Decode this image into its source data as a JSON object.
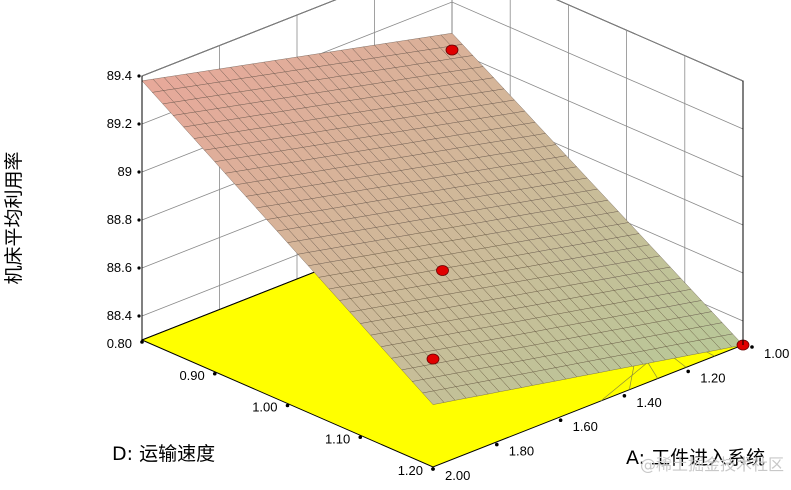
{
  "chart_data": {
    "type": "surface",
    "title": "",
    "zlabel": "机床平均利用率",
    "xlabel": "A: 工件进入系统",
    "ylabel": "D: 运输速度",
    "z_ticks": [
      "88.4",
      "88.6",
      "88.8",
      "89",
      "89.2",
      "89.4"
    ],
    "a_ticks": [
      "1.00",
      "1.20",
      "1.40",
      "1.60",
      "1.80",
      "2.00"
    ],
    "d_ticks": [
      "0.80",
      "0.90",
      "1.00",
      "1.10",
      "1.20"
    ],
    "a_range": [
      1.0,
      2.0
    ],
    "d_range": [
      0.8,
      1.2
    ],
    "z_range": [
      88.3,
      89.4
    ],
    "surface_corners": [
      {
        "A": 1.0,
        "D": 0.8,
        "Z": 89.38
      },
      {
        "A": 1.0,
        "D": 1.2,
        "Z": 89.07
      },
      {
        "A": 2.0,
        "D": 0.8,
        "Z": 88.56
      },
      {
        "A": 2.0,
        "D": 1.2,
        "Z": 88.3
      }
    ],
    "design_points": [
      {
        "A": 1.0,
        "D": 1.2,
        "Z": 89.0
      },
      {
        "A": 2.0,
        "D": 0.8,
        "Z": 88.75
      },
      {
        "A": 2.0,
        "D": 1.2,
        "Z": 88.3
      },
      {
        "A": 1.5,
        "D": 1.0,
        "Z": 88.6
      }
    ],
    "floor_color": "#ffff00",
    "surface_color_low": "#b8c898",
    "surface_color_high": "#e8a89a",
    "point_color": "#e00000",
    "grid": true
  },
  "watermark": "@稀土掘金技术社区"
}
